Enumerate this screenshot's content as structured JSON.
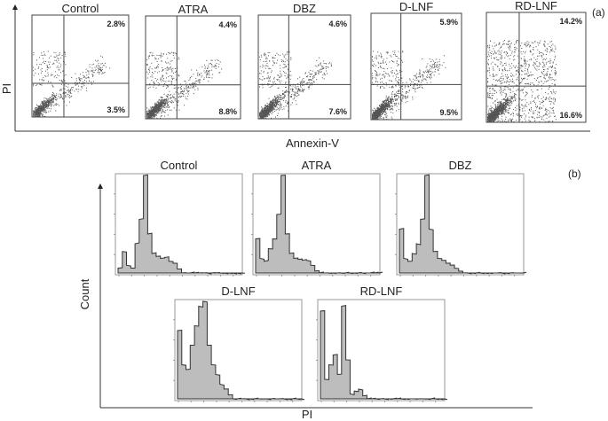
{
  "chart_data": [
    {
      "type": "scatter",
      "label": "(a)",
      "xlabel": "Annexin-V",
      "ylabel": "PI",
      "panels": [
        {
          "title": "Control",
          "upper_right": "2.8%",
          "lower_right": "3.5%",
          "density": 1.0
        },
        {
          "title": "ATRA",
          "upper_right": "4.4%",
          "lower_right": "8.8%",
          "density": 1.2
        },
        {
          "title": "DBZ",
          "upper_right": "4.6%",
          "lower_right": "7.6%",
          "density": 1.2
        },
        {
          "title": "D-LNF",
          "upper_right": "5.9%",
          "lower_right": "9.5%",
          "density": 1.3
        },
        {
          "title": "RD-LNF",
          "upper_right": "14.2%",
          "lower_right": "16.6%",
          "density": 2.0
        }
      ]
    },
    {
      "type": "area",
      "label": "(b)",
      "xlabel": "Count",
      "ylabel": "",
      "x_axis_label": "PI",
      "panels": [
        {
          "title": "Control",
          "values": [
            0.05,
            0.22,
            0.08,
            0.05,
            0.3,
            0.55,
            1.0,
            0.4,
            0.2,
            0.17,
            0.15,
            0.16,
            0.12,
            0.1,
            0.04,
            0,
            0,
            0,
            0,
            0,
            0,
            0,
            0,
            0,
            0,
            0,
            0,
            0,
            0,
            0
          ]
        },
        {
          "title": "ATRA",
          "values": [
            0.35,
            0.15,
            0.12,
            0.25,
            0.35,
            0.6,
            1.0,
            0.4,
            0.2,
            0.15,
            0.14,
            0.13,
            0.13,
            0.08,
            0.02,
            0,
            0,
            0,
            0,
            0,
            0,
            0,
            0,
            0,
            0,
            0,
            0,
            0,
            0,
            0
          ]
        },
        {
          "title": "DBZ",
          "values": [
            0.45,
            0.15,
            0.12,
            0.2,
            0.3,
            0.55,
            1.0,
            0.45,
            0.22,
            0.15,
            0.13,
            0.1,
            0.08,
            0.05,
            0.02,
            0,
            0,
            0,
            0,
            0,
            0,
            0,
            0,
            0,
            0,
            0,
            0,
            0,
            0,
            0
          ]
        },
        {
          "title": "D-LNF",
          "values": [
            0.7,
            0.35,
            0.3,
            0.55,
            0.75,
            0.95,
            1.0,
            0.55,
            0.35,
            0.25,
            0.15,
            0.1,
            0.04,
            0,
            0,
            0,
            0,
            0,
            0,
            0,
            0,
            0,
            0,
            0,
            0,
            0,
            0,
            0,
            0,
            0
          ]
        },
        {
          "title": "RD-LNF",
          "values": [
            0.9,
            0.2,
            0.35,
            0.45,
            0.25,
            0.95,
            0.4,
            0.05,
            0.08,
            0.1,
            0.03,
            0,
            0,
            0,
            0,
            0,
            0,
            0,
            0,
            0,
            0,
            0,
            0,
            0,
            0,
            0,
            0,
            0,
            0,
            0
          ]
        }
      ]
    }
  ]
}
